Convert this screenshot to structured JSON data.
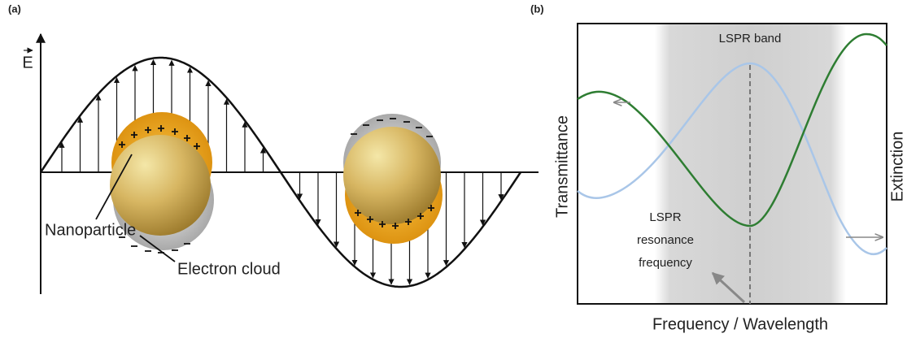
{
  "panel_a": {
    "label": "(a)",
    "field_label": "E",
    "nanoparticle_label": "Nanoparticle",
    "electron_cloud_label": "Electron cloud"
  },
  "panel_b": {
    "label": "(b)",
    "band_label": "LSPR band",
    "y_label": "Transmittance",
    "y2_label": "Extinction",
    "resonance_label": [
      "LSPR",
      "resonance",
      "frequency"
    ],
    "x_label": "Frequency / Wavelength"
  }
}
